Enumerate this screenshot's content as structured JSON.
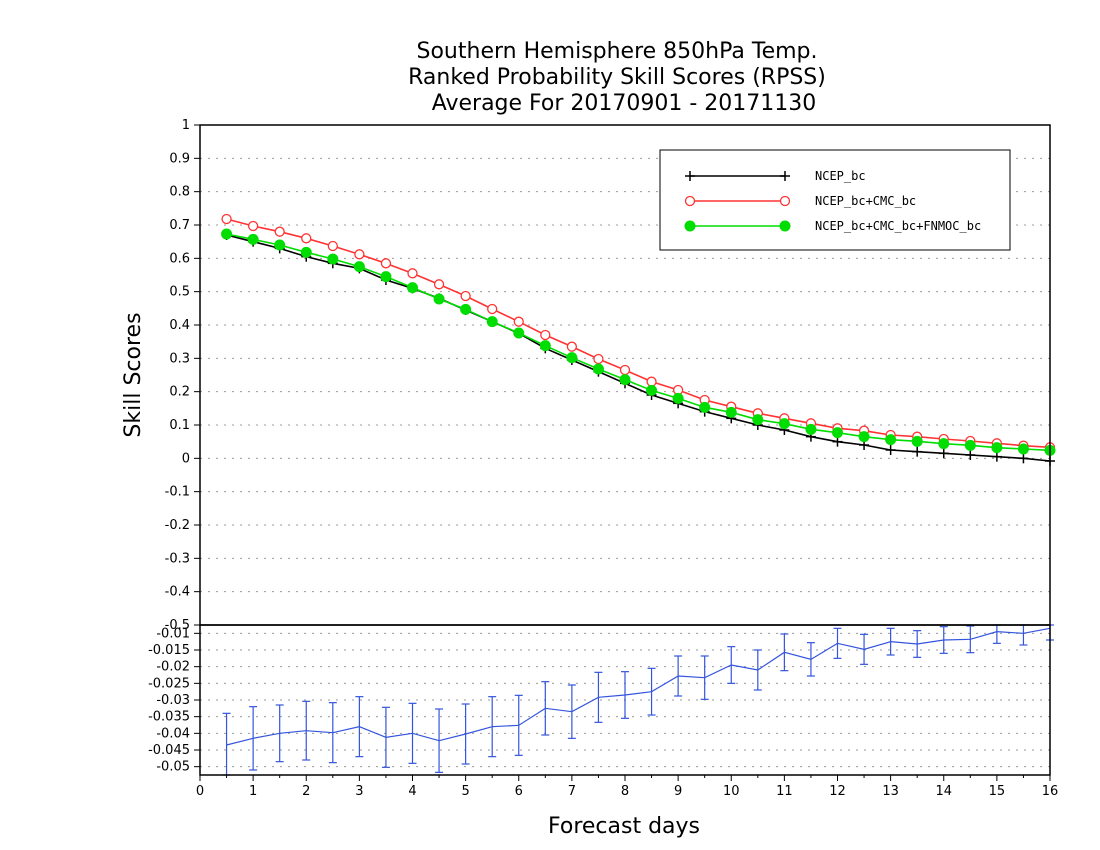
{
  "chart_data": [
    {
      "type": "line",
      "title": [
        "Southern Hemisphere 850hPa Temp.",
        "Ranked Probability Skill Scores (RPSS)",
        "Average For 20170901 - 20171130"
      ],
      "xlabel": "Forecast days",
      "ylabel": "Skill Scores",
      "xlim": [
        0,
        16
      ],
      "ylim": [
        -0.5,
        1
      ],
      "x_ticks": [
        0,
        1,
        2,
        3,
        4,
        5,
        6,
        7,
        8,
        9,
        10,
        11,
        12,
        13,
        14,
        15,
        16
      ],
      "y_ticks": [
        -0.5,
        -0.4,
        -0.3,
        -0.2,
        -0.1,
        0,
        0.1,
        0.2,
        0.3,
        0.4,
        0.5,
        0.6,
        0.7,
        0.8,
        0.9,
        1
      ],
      "y_tick_labels": [
        "-0.5",
        "-0.4",
        "-0.3",
        "-0.2",
        "-0.1",
        "0",
        "0.1",
        "0.2",
        "0.3",
        "0.4",
        "0.5",
        "0.6",
        "0.7",
        "0.8",
        "0.9",
        "1"
      ],
      "grid": true,
      "legend_position": "top-right",
      "x": [
        0.5,
        1,
        1.5,
        2,
        2.5,
        3,
        3.5,
        4,
        4.5,
        5,
        5.5,
        6,
        6.5,
        7,
        7.5,
        8,
        8.5,
        9,
        9.5,
        10,
        10.5,
        11,
        11.5,
        12,
        12.5,
        13,
        13.5,
        14,
        14.5,
        15,
        15.5,
        16
      ],
      "series": [
        {
          "name": "NCEP_bc",
          "color": "#000000",
          "marker": "plus",
          "values": [
            0.67,
            0.65,
            0.63,
            0.605,
            0.585,
            0.57,
            0.535,
            0.51,
            0.48,
            0.445,
            0.41,
            0.375,
            0.33,
            0.295,
            0.26,
            0.225,
            0.19,
            0.165,
            0.14,
            0.12,
            0.1,
            0.085,
            0.065,
            0.05,
            0.04,
            0.025,
            0.02,
            0.015,
            0.01,
            0.005,
            0.0,
            -0.008
          ]
        },
        {
          "name": "NCEP_bc+CMC_bc",
          "color": "#ff3333",
          "marker": "open-circle",
          "values": [
            0.718,
            0.697,
            0.68,
            0.66,
            0.637,
            0.612,
            0.585,
            0.555,
            0.522,
            0.487,
            0.448,
            0.41,
            0.37,
            0.335,
            0.298,
            0.265,
            0.23,
            0.205,
            0.175,
            0.155,
            0.135,
            0.12,
            0.105,
            0.09,
            0.083,
            0.07,
            0.065,
            0.058,
            0.052,
            0.045,
            0.038,
            0.033
          ]
        },
        {
          "name": "NCEP_bc+CMC_bc+FNMOC_bc",
          "color": "#00dd00",
          "marker": "filled-circle",
          "values": [
            0.673,
            0.657,
            0.64,
            0.618,
            0.598,
            0.575,
            0.545,
            0.512,
            0.478,
            0.447,
            0.41,
            0.376,
            0.338,
            0.302,
            0.268,
            0.236,
            0.204,
            0.18,
            0.153,
            0.138,
            0.116,
            0.104,
            0.087,
            0.077,
            0.065,
            0.056,
            0.051,
            0.044,
            0.039,
            0.032,
            0.028,
            0.024
          ]
        }
      ]
    },
    {
      "type": "line",
      "xlim": [
        0,
        16
      ],
      "ylim": [
        -0.0525,
        -0.0075
      ],
      "y_ticks": [
        -0.05,
        -0.045,
        -0.04,
        -0.035,
        -0.03,
        -0.025,
        -0.02,
        -0.015,
        -0.01
      ],
      "y_tick_labels": [
        "-0.05",
        "-0.045",
        "-0.04",
        "-0.035",
        "-0.03",
        "-0.025",
        "-0.02",
        "-0.015",
        "-0.01"
      ],
      "grid": true,
      "x": [
        0.5,
        1,
        1.5,
        2,
        2.5,
        3,
        3.5,
        4,
        4.5,
        5,
        5.5,
        6,
        6.5,
        7,
        7.5,
        8,
        8.5,
        9,
        9.5,
        10,
        10.5,
        11,
        11.5,
        12,
        12.5,
        13,
        13.5,
        14,
        14.5,
        15,
        15.5,
        16
      ],
      "series": [
        {
          "color": "#3355dd",
          "values": [
            -0.0435,
            -0.0415,
            -0.04,
            -0.0392,
            -0.0398,
            -0.038,
            -0.0412,
            -0.04,
            -0.0422,
            -0.0402,
            -0.038,
            -0.0376,
            -0.0325,
            -0.0335,
            -0.0292,
            -0.0285,
            -0.0275,
            -0.0228,
            -0.0233,
            -0.0195,
            -0.021,
            -0.0157,
            -0.0178,
            -0.013,
            -0.0148,
            -0.0125,
            -0.0132,
            -0.012,
            -0.0118,
            -0.0095,
            -0.01,
            -0.0085
          ],
          "error": [
            0.0095,
            0.0095,
            0.0085,
            0.0088,
            0.009,
            0.009,
            0.009,
            0.009,
            0.0095,
            0.009,
            0.009,
            0.009,
            0.008,
            0.008,
            0.0075,
            0.007,
            0.007,
            0.006,
            0.0065,
            0.0055,
            0.006,
            0.0055,
            0.005,
            0.0045,
            0.0045,
            0.004,
            0.004,
            0.004,
            0.004,
            0.0035,
            0.0035,
            0.0035
          ]
        }
      ]
    }
  ]
}
